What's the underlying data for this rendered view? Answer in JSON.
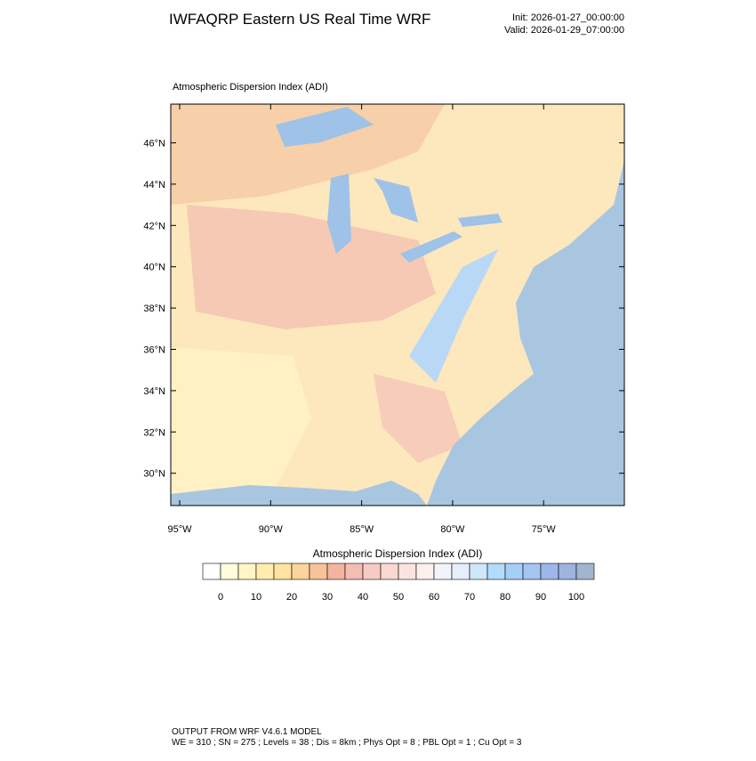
{
  "header": {
    "title": "IWFAQRP Eastern US Real Time WRF",
    "init": "Init: 2026-01-27_00:00:00",
    "valid": "Valid: 2026-01-29_07:00:00"
  },
  "map": {
    "title": "Atmospheric Dispersion Index   (ADI)",
    "lat_labels": [
      "46°N",
      "44°N",
      "42°N",
      "40°N",
      "38°N",
      "36°N",
      "34°N",
      "32°N",
      "30°N"
    ],
    "lon_labels": [
      "95°W",
      "90°W",
      "85°W",
      "80°W",
      "75°W"
    ]
  },
  "colorbar": {
    "title": "Atmospheric Dispersion Index  (ADI)",
    "labels": [
      0,
      10,
      20,
      30,
      40,
      50,
      60,
      70,
      80,
      90,
      100
    ],
    "colors": [
      "#ffffff",
      "#fffbdc",
      "#fff5c6",
      "#ffedb0",
      "#ffe3a0",
      "#fdd49a",
      "#f8c29a",
      "#f4b4a0",
      "#f3bdb4",
      "#f6cbc4",
      "#f9d8d2",
      "#fbe4e0",
      "#fcefed",
      "#f4f2fb",
      "#e6eefc",
      "#cde7fb",
      "#b2dcfa",
      "#a4d0f6",
      "#a6c4f2",
      "#9eb7ea",
      "#9fb3df",
      "#a2b5cf"
    ]
  },
  "footer": {
    "line1": "OUTPUT FROM WRF V4.6.1 MODEL",
    "line2": "WE = 310 ; SN = 275 ; Levels = 38 ; Dis = 8km ; Phys Opt = 8 ; PBL Opt = 1 ; Cu Opt = 3"
  }
}
